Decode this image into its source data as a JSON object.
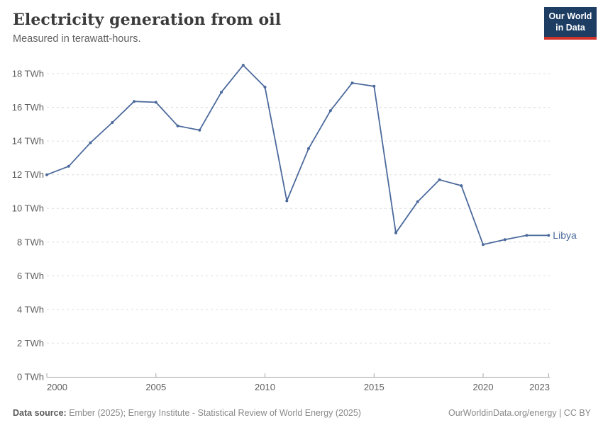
{
  "header": {
    "title": "Electricity generation from oil",
    "subtitle": "Measured in terawatt-hours."
  },
  "logo": {
    "line1": "Our World",
    "line2": "in Data",
    "bg_color": "#1d3d63",
    "accent_color": "#d0342c"
  },
  "chart_data": {
    "type": "line",
    "title": "Electricity generation from oil",
    "ylabel": "",
    "xlabel": "",
    "unit": "TWh",
    "grid": true,
    "x": [
      2000,
      2001,
      2002,
      2003,
      2004,
      2005,
      2006,
      2007,
      2008,
      2009,
      2010,
      2011,
      2012,
      2013,
      2014,
      2015,
      2016,
      2017,
      2018,
      2019,
      2020,
      2021,
      2022,
      2023
    ],
    "series": [
      {
        "name": "Libya",
        "color": "#4C6A9C",
        "values": [
          12.0,
          12.5,
          13.9,
          15.1,
          16.35,
          16.3,
          14.9,
          14.65,
          16.9,
          18.5,
          17.2,
          10.45,
          13.55,
          15.8,
          17.45,
          17.25,
          8.55,
          10.4,
          11.7,
          11.35,
          7.85,
          8.15,
          8.4,
          8.4
        ]
      }
    ],
    "ylim": [
      0,
      18
    ],
    "ytick_step": 2,
    "ytick_suffix": " TWh",
    "yticks": [
      0,
      2,
      4,
      6,
      8,
      10,
      12,
      14,
      16,
      18
    ],
    "xticks": [
      2000,
      2005,
      2010,
      2015,
      2020,
      2023
    ],
    "legend_position": "end-of-line"
  },
  "colors": {
    "grid": "#dcdcdc",
    "axis": "#a5a5a5",
    "axis_text": "#5f5f5f"
  },
  "footer": {
    "source_label": "Data source:",
    "source_text": " Ember (2025); Energy Institute - Statistical Review of World Energy (2025)",
    "link": "OurWorldinData.org/energy",
    "separator": " | ",
    "license": "CC BY"
  }
}
